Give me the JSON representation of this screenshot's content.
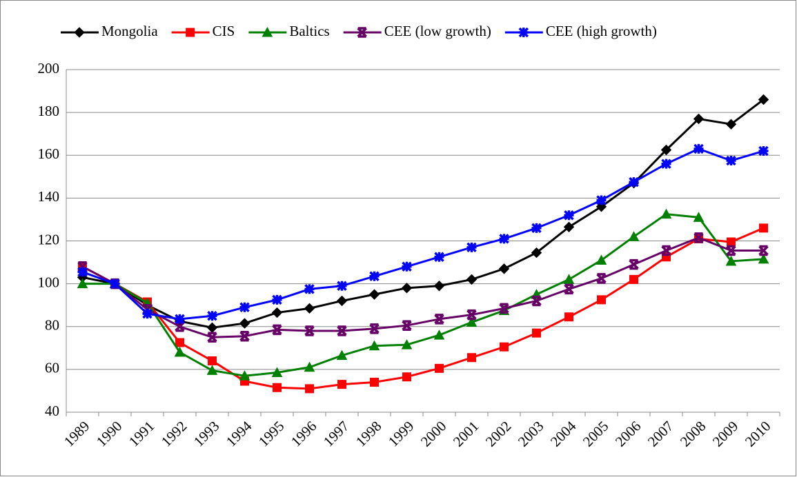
{
  "chart_data": {
    "type": "line",
    "categories": [
      "1989",
      "1990",
      "1991",
      "1992",
      "1993",
      "1994",
      "1995",
      "1996",
      "1997",
      "1998",
      "1999",
      "2000",
      "2001",
      "2002",
      "2003",
      "2004",
      "2005",
      "2006",
      "2007",
      "2008",
      "2009",
      "2010"
    ],
    "series": [
      {
        "name": "Mongolia",
        "color": "#000000",
        "marker": "diamond",
        "values": [
          103,
          100,
          90,
          82.5,
          79.5,
          81.5,
          86.5,
          88.5,
          92,
          95,
          98,
          99,
          102,
          107,
          114.5,
          126.5,
          136,
          147,
          162.5,
          177,
          174.5,
          186
        ]
      },
      {
        "name": "CIS",
        "color": "#ff0000",
        "marker": "square",
        "values": [
          108,
          100,
          91.5,
          72.5,
          64,
          54.5,
          51.5,
          51,
          53,
          54,
          56.5,
          60.5,
          65.5,
          70.5,
          77,
          84.5,
          92.5,
          102,
          112.5,
          121,
          119.5,
          126
        ]
      },
      {
        "name": "Baltics",
        "color": "#008000",
        "marker": "triangle",
        "values": [
          100,
          100,
          91,
          68,
          59.5,
          57,
          58.5,
          61,
          66.5,
          71,
          71.5,
          76,
          82,
          87.5,
          95,
          102,
          111,
          122,
          132.5,
          131,
          110.5,
          111.5
        ]
      },
      {
        "name": "CEE (low growth)",
        "color": "#660066",
        "marker": "x",
        "values": [
          108,
          100,
          88,
          80,
          75,
          75.5,
          78.5,
          78,
          78,
          79,
          80.5,
          83.5,
          85.5,
          88.5,
          92,
          97.5,
          102.5,
          109,
          115.5,
          121.5,
          115.5,
          115.5
        ]
      },
      {
        "name": "CEE (high growth)",
        "color": "#0000ff",
        "marker": "star",
        "values": [
          105.5,
          100,
          86,
          83.5,
          85,
          89,
          92.5,
          97.5,
          99,
          103.5,
          108,
          112.5,
          117,
          121,
          126,
          132,
          139,
          147.5,
          156,
          163,
          157.5,
          162
        ]
      }
    ],
    "ylim": [
      40,
      200
    ],
    "yticks": [
      40,
      60,
      80,
      100,
      120,
      140,
      160,
      180,
      200
    ],
    "grid": true,
    "legend": "top"
  }
}
